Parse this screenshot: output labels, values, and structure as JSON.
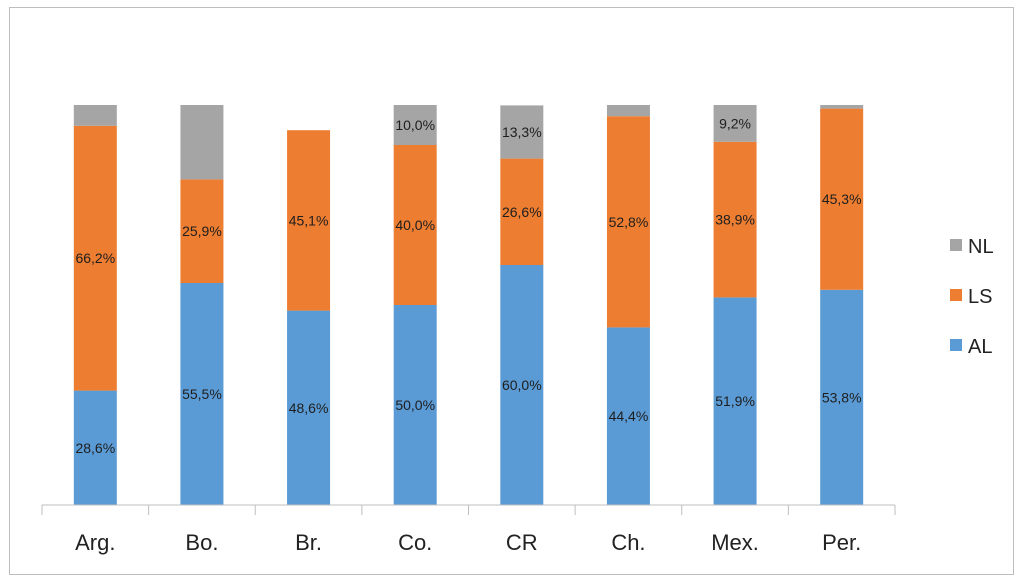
{
  "chart_data": {
    "type": "bar",
    "stacked": true,
    "categories": [
      "Arg.",
      "Bo.",
      "Br.",
      "Co.",
      "CR",
      "Ch.",
      "Mex.",
      "Per."
    ],
    "series": [
      {
        "name": "AL",
        "color": "#5b9bd5",
        "values": [
          28.6,
          55.5,
          48.6,
          50.0,
          60.0,
          44.4,
          51.9,
          53.8
        ],
        "labels": [
          "28,6%",
          "55,5%",
          "48,6%",
          "50,0%",
          "60,0%",
          "44,4%",
          "51,9%",
          "53,8%"
        ]
      },
      {
        "name": "LS",
        "color": "#ed7d31",
        "values": [
          66.2,
          25.9,
          45.1,
          40.0,
          26.6,
          52.8,
          38.9,
          45.3
        ],
        "labels": [
          "66,2%",
          "25,9%",
          "45,1%",
          "40,0%",
          "26,6%",
          "52,8%",
          "38,9%",
          "45,3%"
        ]
      },
      {
        "name": "NL",
        "color": "#a5a5a5",
        "values": [
          5.2,
          18.6,
          0,
          10.0,
          13.3,
          2.8,
          9.2,
          0.9
        ],
        "labels": [
          "",
          "",
          "",
          "10,0%",
          "13,3%",
          "",
          "9,2%",
          ""
        ]
      }
    ],
    "ylim": [
      0,
      100
    ],
    "grid": false,
    "legend": {
      "position": "right",
      "items": [
        "NL",
        "LS",
        "AL"
      ]
    },
    "title": "",
    "xlabel": "",
    "ylabel": ""
  }
}
